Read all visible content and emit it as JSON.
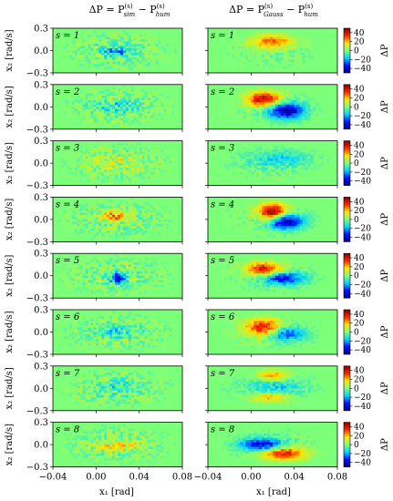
{
  "chart_data": {
    "type": "heatmap",
    "colormap": [
      "#00007f",
      "#0010ff",
      "#00d4ff",
      "#7cff79",
      "#ffe500",
      "#ff2500",
      "#7f0000"
    ],
    "background_value_color": "#7cff79",
    "columns": [
      {
        "title_parts": {
          "pre": "ΔP = P",
          "sub1": "sim",
          "mid": " − P",
          "sub2": "hum",
          "sup": "(s)"
        }
      },
      {
        "title_parts": {
          "pre": "ΔP = P",
          "sub1": "Gauss",
          "mid": " − P",
          "sub2": "hum",
          "sup": "(s)"
        }
      }
    ],
    "rows": [
      {
        "s_label": "s = 1"
      },
      {
        "s_label": "s = 2"
      },
      {
        "s_label": "s = 3"
      },
      {
        "s_label": "s = 4"
      },
      {
        "s_label": "s = 5"
      },
      {
        "s_label": "s = 6"
      },
      {
        "s_label": "s = 7"
      },
      {
        "s_label": "s = 8"
      }
    ],
    "xlabel": "x₁ [rad]",
    "ylabel": "x₂ [rad/s]",
    "x_ticks": [
      "−0.04",
      "0.00",
      "0.04",
      "0.08"
    ],
    "x_tick_values": [
      -0.04,
      0.0,
      0.04,
      0.08
    ],
    "xlim": [
      -0.04,
      0.08
    ],
    "y_ticks": [
      "0.3",
      "0.0",
      "−0.3"
    ],
    "y_tick_values": [
      0.3,
      0.0,
      -0.3
    ],
    "ylim": [
      -0.3,
      0.3
    ],
    "colorbar": {
      "label": "ΔP",
      "ticks": [
        "40",
        "20",
        "0",
        "−20",
        "−40"
      ],
      "tick_values": [
        40,
        20,
        0,
        -20,
        -40
      ],
      "range": [
        -50,
        50
      ]
    },
    "blobs_right": [
      [
        {
          "x": 0.02,
          "y": 0.12,
          "amp": 30,
          "sx": 0.013,
          "sy": 0.06
        }
      ],
      [
        {
          "x": 0.012,
          "y": 0.1,
          "amp": 45,
          "sx": 0.011,
          "sy": 0.07
        },
        {
          "x": 0.032,
          "y": -0.05,
          "amp": -45,
          "sx": 0.012,
          "sy": 0.08
        }
      ],
      [
        {
          "x": 0.025,
          "y": 0.05,
          "amp": -15,
          "sx": 0.02,
          "sy": 0.08
        }
      ],
      [
        {
          "x": 0.02,
          "y": 0.1,
          "amp": 48,
          "sx": 0.009,
          "sy": 0.08
        },
        {
          "x": 0.032,
          "y": -0.03,
          "amp": -48,
          "sx": 0.011,
          "sy": 0.07
        }
      ],
      [
        {
          "x": 0.012,
          "y": 0.09,
          "amp": 40,
          "sx": 0.011,
          "sy": 0.06
        },
        {
          "x": 0.03,
          "y": -0.04,
          "amp": -35,
          "sx": 0.014,
          "sy": 0.06
        }
      ],
      [
        {
          "x": 0.012,
          "y": 0.06,
          "amp": 40,
          "sx": 0.012,
          "sy": 0.08
        },
        {
          "x": 0.032,
          "y": -0.02,
          "amp": -30,
          "sx": 0.012,
          "sy": 0.07
        }
      ],
      [
        {
          "x": 0.02,
          "y": 0.17,
          "amp": 25,
          "sx": 0.01,
          "sy": 0.05
        },
        {
          "x": 0.018,
          "y": -0.12,
          "amp": 20,
          "sx": 0.012,
          "sy": 0.05
        },
        {
          "x": 0.022,
          "y": 0.02,
          "amp": -15,
          "sx": 0.02,
          "sy": 0.08
        }
      ],
      [
        {
          "x": 0.01,
          "y": 0.0,
          "amp": -40,
          "sx": 0.014,
          "sy": 0.06
        },
        {
          "x": 0.03,
          "y": -0.12,
          "amp": 38,
          "sx": 0.014,
          "sy": 0.06
        }
      ]
    ],
    "blobs_left": [
      [
        {
          "x": 0.02,
          "y": -0.02,
          "amp": -20,
          "sx": 0.01,
          "sy": 0.05
        }
      ],
      [
        {
          "x": 0.018,
          "y": 0.0,
          "amp": -12,
          "sx": 0.015,
          "sy": 0.06
        }
      ],
      [
        {
          "x": 0.02,
          "y": 0.0,
          "amp": 8,
          "sx": 0.02,
          "sy": 0.08
        }
      ],
      [
        {
          "x": 0.018,
          "y": 0.05,
          "amp": 25,
          "sx": 0.008,
          "sy": 0.05
        }
      ],
      [
        {
          "x": 0.02,
          "y": -0.03,
          "amp": -40,
          "sx": 0.005,
          "sy": 0.05
        }
      ],
      [
        {
          "x": 0.02,
          "y": 0.0,
          "amp": -10,
          "sx": 0.012,
          "sy": 0.06
        }
      ],
      [
        {
          "x": 0.02,
          "y": 0.02,
          "amp": -10,
          "sx": 0.012,
          "sy": 0.06
        }
      ],
      [
        {
          "x": 0.02,
          "y": 0.0,
          "amp": 12,
          "sx": 0.015,
          "sy": 0.06
        }
      ]
    ],
    "noise_scale_left": 14,
    "noise_scale_right": 8
  }
}
